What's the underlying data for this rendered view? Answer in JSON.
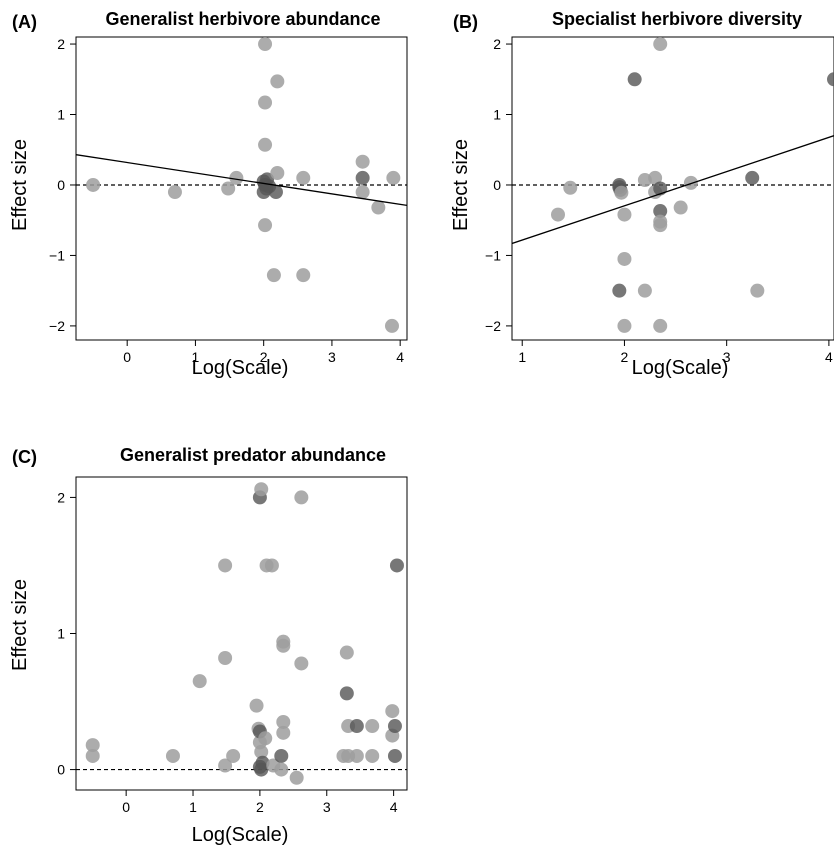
{
  "chart_data": [
    {
      "type": "scatter",
      "panel_label": "(A)",
      "title": "Generalist herbivore abundance",
      "xlabel": "Log(Scale)",
      "ylabel": "Effect size",
      "xlim": [
        -0.75,
        4.1
      ],
      "ylim": [
        -2.2,
        2.1
      ],
      "xticks": [
        0,
        1,
        2,
        3,
        4
      ],
      "yticks": [
        -2,
        -1,
        0,
        1,
        2
      ],
      "reference_line_y": 0,
      "trend_line": {
        "x": [
          -0.75,
          4.1
        ],
        "y": [
          0.43,
          -0.29
        ]
      },
      "points": [
        {
          "x": -0.5,
          "y": 0.0,
          "dark": false
        },
        {
          "x": 0.7,
          "y": -0.1,
          "dark": false
        },
        {
          "x": 1.48,
          "y": -0.05,
          "dark": false
        },
        {
          "x": 1.6,
          "y": 0.1,
          "dark": false
        },
        {
          "x": 2.02,
          "y": 2.0,
          "dark": false
        },
        {
          "x": 2.02,
          "y": 1.17,
          "dark": false
        },
        {
          "x": 2.02,
          "y": 0.57,
          "dark": false
        },
        {
          "x": 2.02,
          "y": -0.57,
          "dark": false
        },
        {
          "x": 2.0,
          "y": 0.05,
          "dark": true
        },
        {
          "x": 2.02,
          "y": 0.0,
          "dark": true
        },
        {
          "x": 2.04,
          "y": -0.05,
          "dark": true
        },
        {
          "x": 2.0,
          "y": -0.1,
          "dark": true
        },
        {
          "x": 2.05,
          "y": 0.08,
          "dark": true
        },
        {
          "x": 2.08,
          "y": -0.02,
          "dark": true
        },
        {
          "x": 2.18,
          "y": -0.1,
          "dark": true
        },
        {
          "x": 2.2,
          "y": 0.17,
          "dark": false
        },
        {
          "x": 2.2,
          "y": 1.47,
          "dark": false
        },
        {
          "x": 2.15,
          "y": -1.28,
          "dark": false
        },
        {
          "x": 2.58,
          "y": 0.1,
          "dark": false
        },
        {
          "x": 2.58,
          "y": -1.28,
          "dark": false
        },
        {
          "x": 3.45,
          "y": 0.33,
          "dark": false
        },
        {
          "x": 3.45,
          "y": 0.1,
          "dark": true
        },
        {
          "x": 3.45,
          "y": -0.1,
          "dark": false
        },
        {
          "x": 3.68,
          "y": -0.32,
          "dark": false
        },
        {
          "x": 3.9,
          "y": 0.1,
          "dark": false
        },
        {
          "x": 3.88,
          "y": -2.0,
          "dark": false
        }
      ]
    },
    {
      "type": "scatter",
      "panel_label": "(B)",
      "title": "Specialist herbivore diversity",
      "xlabel": "Log(Scale)",
      "ylabel": "Effect size",
      "xlim": [
        0.9,
        4.05
      ],
      "ylim": [
        -2.2,
        2.1
      ],
      "xticks": [
        1,
        2,
        3,
        4
      ],
      "yticks": [
        -2,
        -1,
        0,
        1,
        2
      ],
      "reference_line_y": 0,
      "trend_line": {
        "x": [
          0.9,
          4.05
        ],
        "y": [
          -0.83,
          0.7
        ]
      },
      "points": [
        {
          "x": 1.35,
          "y": -0.42,
          "dark": false
        },
        {
          "x": 1.47,
          "y": -0.04,
          "dark": false
        },
        {
          "x": 1.95,
          "y": 0.0,
          "dark": true
        },
        {
          "x": 1.95,
          "y": -0.03,
          "dark": true
        },
        {
          "x": 1.96,
          "y": -0.07,
          "dark": true
        },
        {
          "x": 1.97,
          "y": -0.11,
          "dark": false
        },
        {
          "x": 1.95,
          "y": -1.5,
          "dark": true
        },
        {
          "x": 2.0,
          "y": -0.42,
          "dark": false
        },
        {
          "x": 2.0,
          "y": -1.05,
          "dark": false
        },
        {
          "x": 2.0,
          "y": -2.0,
          "dark": false
        },
        {
          "x": 2.1,
          "y": 1.5,
          "dark": true
        },
        {
          "x": 2.2,
          "y": 0.07,
          "dark": false
        },
        {
          "x": 2.2,
          "y": -1.5,
          "dark": false
        },
        {
          "x": 2.3,
          "y": 0.1,
          "dark": false
        },
        {
          "x": 2.3,
          "y": -0.1,
          "dark": false
        },
        {
          "x": 2.35,
          "y": 2.0,
          "dark": false
        },
        {
          "x": 2.35,
          "y": -0.05,
          "dark": true
        },
        {
          "x": 2.35,
          "y": -0.37,
          "dark": true
        },
        {
          "x": 2.35,
          "y": -0.52,
          "dark": false
        },
        {
          "x": 2.35,
          "y": -0.57,
          "dark": false
        },
        {
          "x": 2.35,
          "y": -2.0,
          "dark": false
        },
        {
          "x": 2.55,
          "y": -0.32,
          "dark": false
        },
        {
          "x": 2.65,
          "y": 0.03,
          "dark": false
        },
        {
          "x": 3.25,
          "y": 0.1,
          "dark": true
        },
        {
          "x": 3.3,
          "y": -1.5,
          "dark": false
        },
        {
          "x": 4.05,
          "y": 1.5,
          "dark": true
        }
      ]
    },
    {
      "type": "scatter",
      "panel_label": "(C)",
      "title": "Generalist predator abundance",
      "xlabel": "Log(Scale)",
      "ylabel": "Effect size",
      "xlim": [
        -0.75,
        4.2
      ],
      "ylim": [
        -0.15,
        2.15
      ],
      "xticks": [
        0,
        1,
        2,
        3,
        4
      ],
      "yticks": [
        0,
        1,
        2
      ],
      "reference_line_y": 0,
      "points": [
        {
          "x": -0.5,
          "y": 0.18,
          "dark": false
        },
        {
          "x": -0.5,
          "y": 0.1,
          "dark": false
        },
        {
          "x": 0.7,
          "y": 0.1,
          "dark": false
        },
        {
          "x": 1.1,
          "y": 0.65,
          "dark": false
        },
        {
          "x": 1.48,
          "y": 1.5,
          "dark": false
        },
        {
          "x": 1.48,
          "y": 0.82,
          "dark": false
        },
        {
          "x": 1.48,
          "y": 0.03,
          "dark": false
        },
        {
          "x": 1.6,
          "y": 0.1,
          "dark": false
        },
        {
          "x": 1.95,
          "y": 0.47,
          "dark": false
        },
        {
          "x": 1.98,
          "y": 0.3,
          "dark": false
        },
        {
          "x": 2.0,
          "y": 0.2,
          "dark": false
        },
        {
          "x": 2.02,
          "y": 0.13,
          "dark": false
        },
        {
          "x": 2.0,
          "y": 2.0,
          "dark": true
        },
        {
          "x": 2.02,
          "y": 2.06,
          "dark": false
        },
        {
          "x": 2.0,
          "y": 0.28,
          "dark": true
        },
        {
          "x": 2.0,
          "y": 0.02,
          "dark": true
        },
        {
          "x": 2.02,
          "y": 0.0,
          "dark": true
        },
        {
          "x": 2.04,
          "y": 0.05,
          "dark": true
        },
        {
          "x": 2.08,
          "y": 0.23,
          "dark": false
        },
        {
          "x": 2.1,
          "y": 1.5,
          "dark": false
        },
        {
          "x": 2.18,
          "y": 1.5,
          "dark": false
        },
        {
          "x": 2.2,
          "y": 0.03,
          "dark": false
        },
        {
          "x": 2.32,
          "y": 0.1,
          "dark": true
        },
        {
          "x": 2.32,
          "y": 0.0,
          "dark": false
        },
        {
          "x": 2.35,
          "y": 0.94,
          "dark": false
        },
        {
          "x": 2.35,
          "y": 0.91,
          "dark": false
        },
        {
          "x": 2.35,
          "y": 0.35,
          "dark": false
        },
        {
          "x": 2.35,
          "y": 0.27,
          "dark": false
        },
        {
          "x": 2.55,
          "y": -0.06,
          "dark": false
        },
        {
          "x": 2.62,
          "y": 2.0,
          "dark": false
        },
        {
          "x": 2.62,
          "y": 0.78,
          "dark": false
        },
        {
          "x": 3.25,
          "y": 0.1,
          "dark": false
        },
        {
          "x": 3.3,
          "y": 0.86,
          "dark": false
        },
        {
          "x": 3.3,
          "y": 0.56,
          "dark": true
        },
        {
          "x": 3.32,
          "y": 0.32,
          "dark": false
        },
        {
          "x": 3.32,
          "y": 0.1,
          "dark": false
        },
        {
          "x": 3.45,
          "y": 0.32,
          "dark": true
        },
        {
          "x": 3.45,
          "y": 0.1,
          "dark": false
        },
        {
          "x": 3.68,
          "y": 0.32,
          "dark": false
        },
        {
          "x": 3.68,
          "y": 0.1,
          "dark": false
        },
        {
          "x": 3.98,
          "y": 0.43,
          "dark": false
        },
        {
          "x": 3.98,
          "y": 0.25,
          "dark": false
        },
        {
          "x": 4.02,
          "y": 0.32,
          "dark": true
        },
        {
          "x": 4.02,
          "y": 0.1,
          "dark": true
        },
        {
          "x": 4.05,
          "y": 1.5,
          "dark": true
        }
      ]
    }
  ],
  "colors": {
    "point_light": "#9e9e9e",
    "point_dark": "#555555",
    "line": "#000000"
  }
}
